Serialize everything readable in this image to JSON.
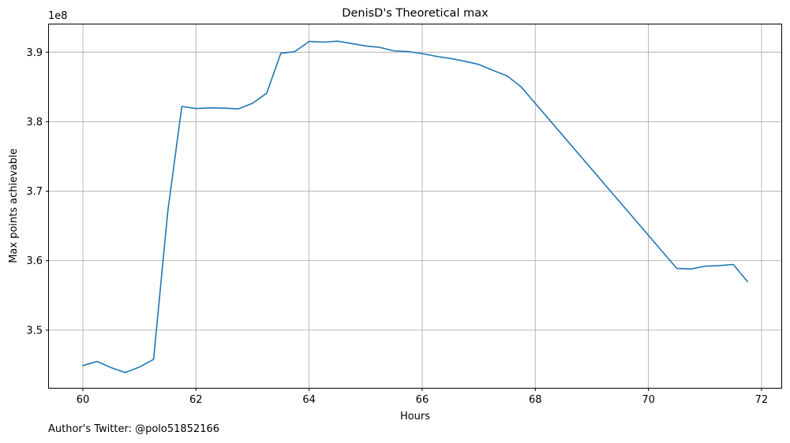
{
  "footnote": "Author's Twitter: @polo51852166",
  "chart_data": {
    "type": "line",
    "title": "DenisD's Theoretical max",
    "xlabel": "Hours",
    "ylabel": "Max points achievable",
    "y_offset_label": "1e8",
    "xlim": [
      59.4,
      72.35
    ],
    "ylim": [
      341700000,
      394000000
    ],
    "xticks": [
      60,
      62,
      64,
      66,
      68,
      70,
      72
    ],
    "yticks": [
      350000000,
      360000000,
      370000000,
      380000000,
      390000000
    ],
    "ytick_labels": [
      "3.5",
      "3.6",
      "3.7",
      "3.8",
      "3.9"
    ],
    "grid": true,
    "color": "#1f77b4",
    "series": [
      {
        "x": [
          60.0,
          60.25,
          60.5,
          60.75,
          61.0,
          61.25,
          61.5,
          61.75,
          62.0,
          62.25,
          62.5,
          62.75,
          63.0,
          63.25,
          63.5,
          63.75,
          64.0,
          64.25,
          64.5,
          64.75,
          65.0,
          65.25,
          65.5,
          65.75,
          66.0,
          66.25,
          66.5,
          66.75,
          67.0,
          67.25,
          67.5,
          67.75,
          70.5,
          70.75,
          71.0,
          71.25,
          71.5,
          71.75
        ],
        "y": [
          344900000,
          345500000,
          344600000,
          343900000,
          344700000,
          345800000,
          367000000,
          382200000,
          381900000,
          382000000,
          381950000,
          381850000,
          382650000,
          384100000,
          389850000,
          390100000,
          391550000,
          391450000,
          391600000,
          391250000,
          390900000,
          390700000,
          390200000,
          390100000,
          389800000,
          389400000,
          389100000,
          388700000,
          388250000,
          387400000,
          386600000,
          385000000,
          358900000,
          358800000,
          359200000,
          359300000,
          359450000,
          357000000
        ]
      }
    ]
  }
}
